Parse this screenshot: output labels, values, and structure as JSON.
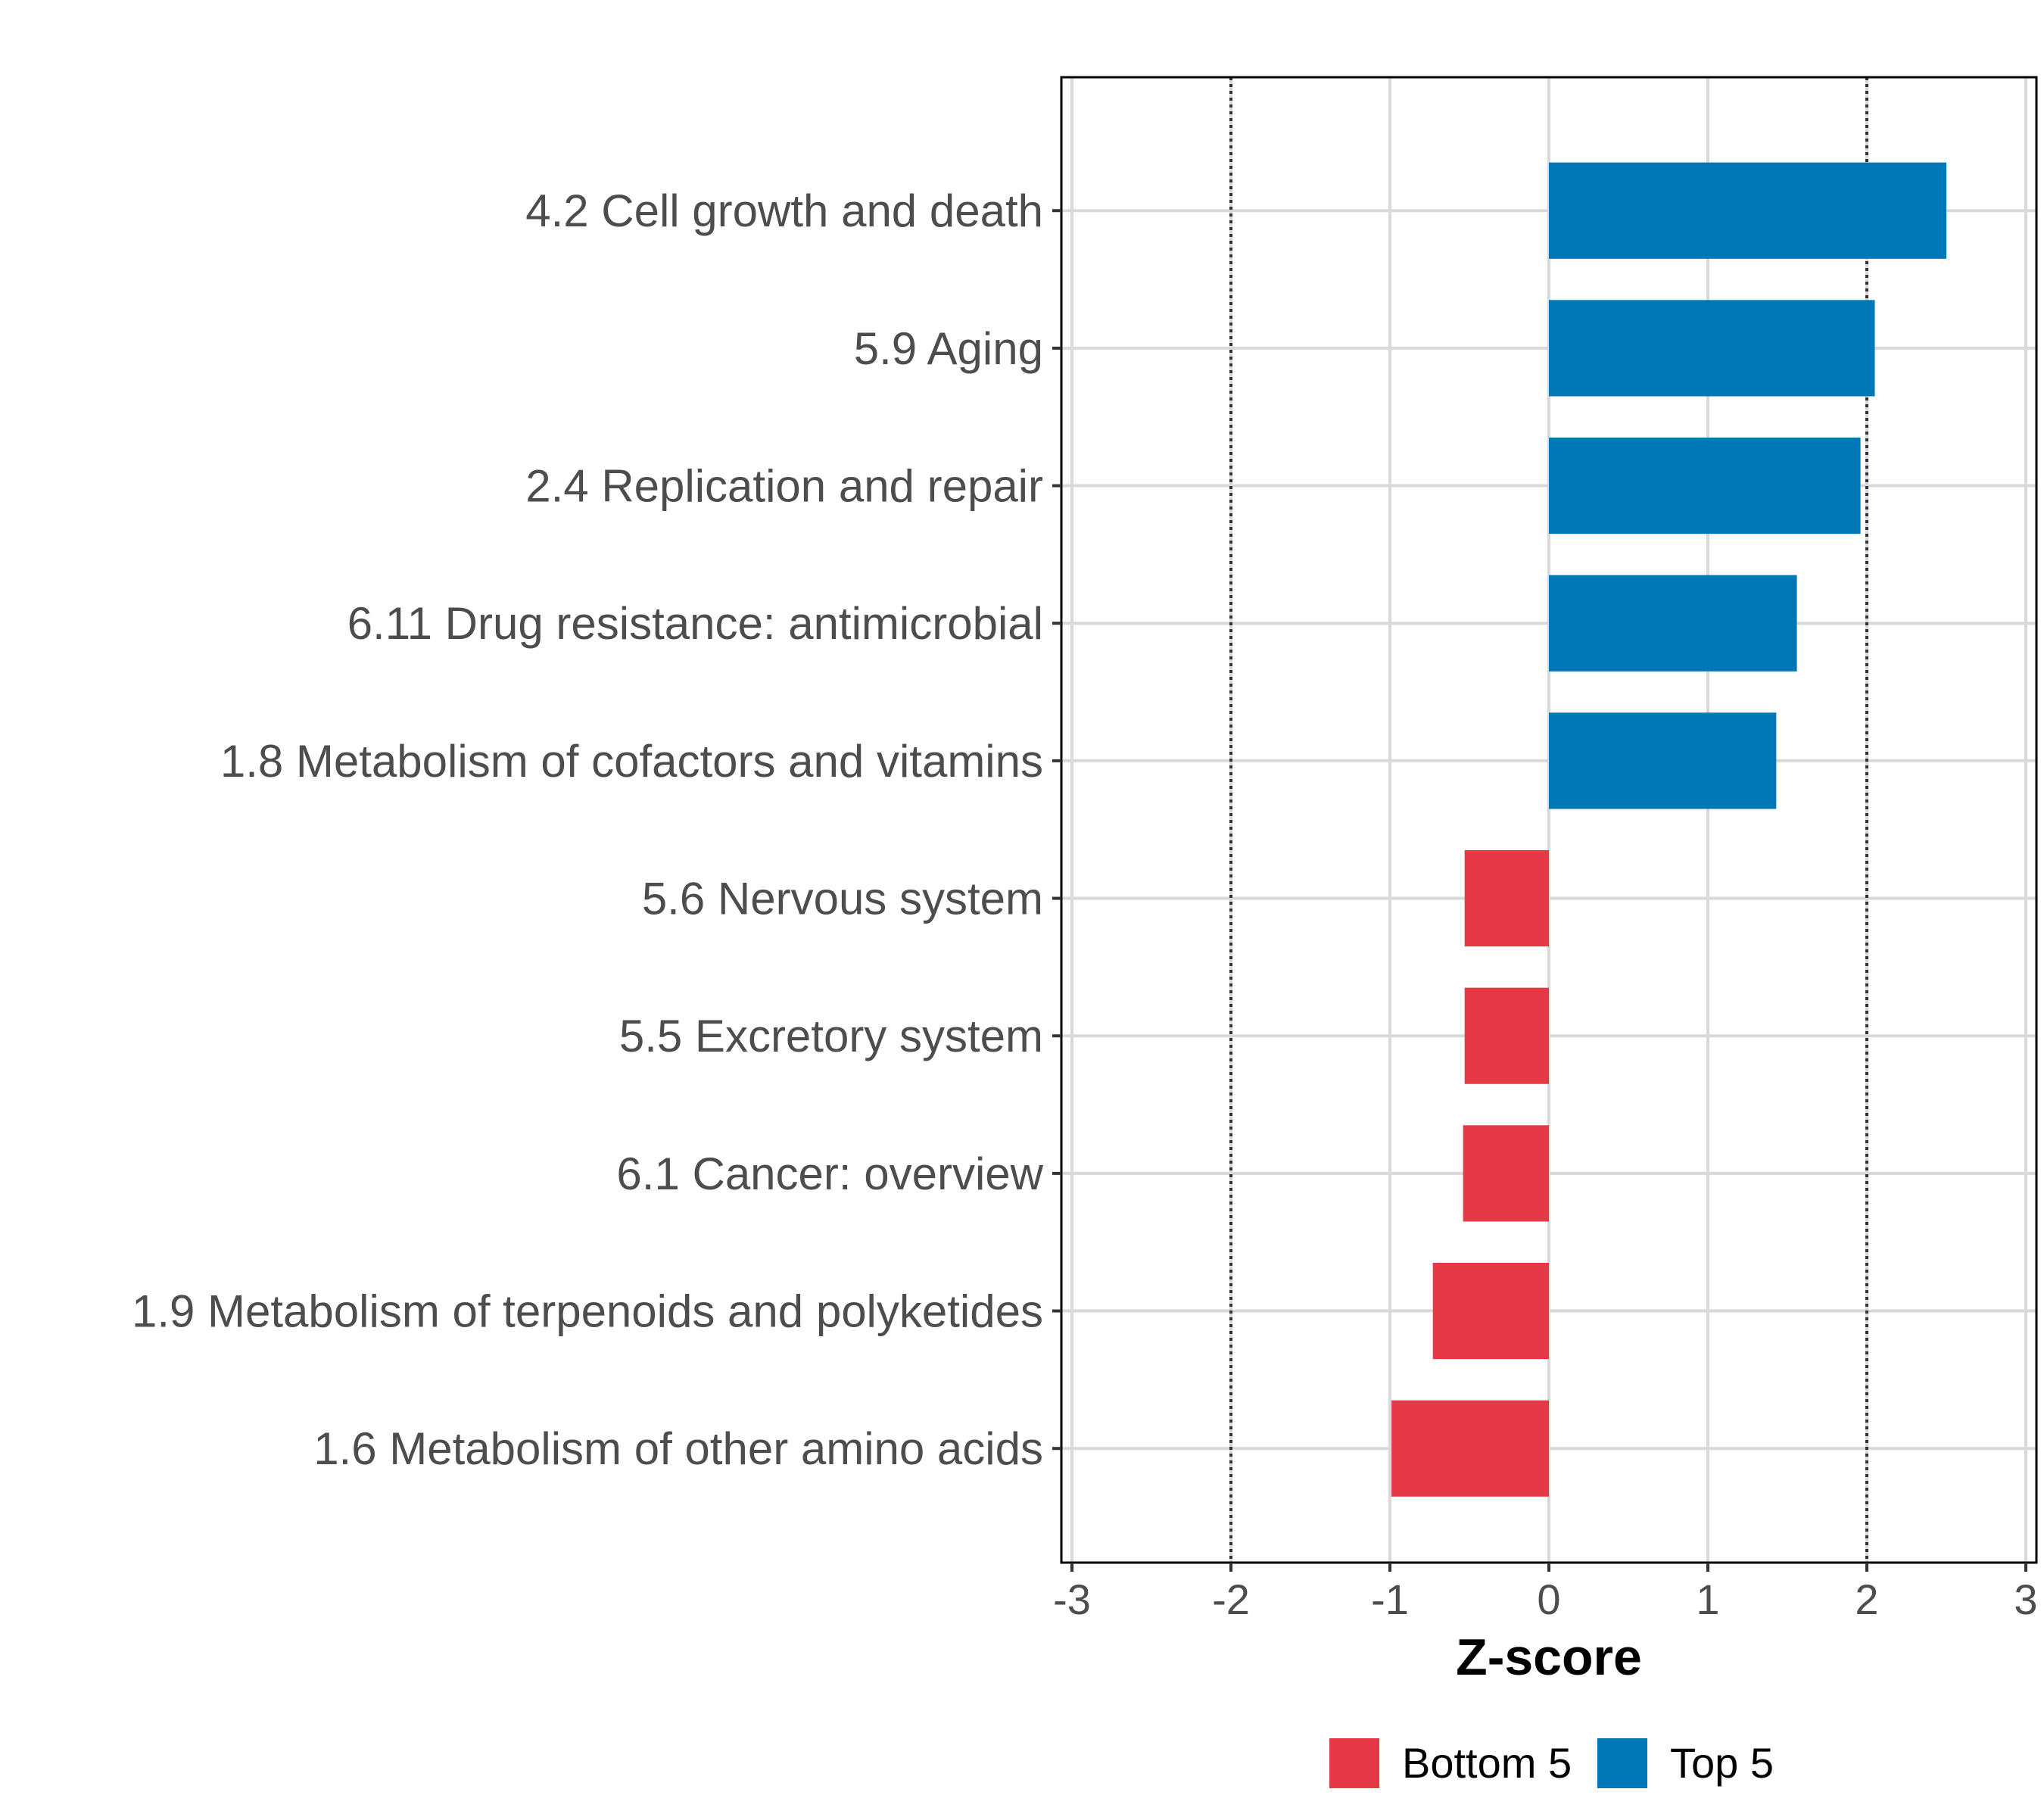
{
  "chart_data": {
    "type": "bar",
    "orientation": "horizontal",
    "title": "",
    "xlabel": "Z-score",
    "ylabel": "",
    "xlim": [
      -3,
      3
    ],
    "x_ticks": [
      "-3",
      "-2",
      "-1",
      "0",
      "1",
      "2",
      "3"
    ],
    "threshold_lines": [
      -2,
      2
    ],
    "categories": [
      "4.2 Cell growth and death",
      "5.9 Aging",
      "2.4 Replication and repair",
      "6.11 Drug resistance: antimicrobial",
      "1.8 Metabolism of cofactors and vitamins",
      "5.6 Nervous system",
      "5.5 Excretory system",
      "6.1 Cancer: overview",
      "1.9 Metabolism of terpenoids and polyketides",
      "1.6 Metabolism of other amino acids"
    ],
    "values": [
      2.5,
      2.05,
      1.96,
      1.56,
      1.43,
      -0.53,
      -0.53,
      -0.54,
      -0.73,
      -0.99
    ],
    "groups": [
      "Top 5",
      "Top 5",
      "Top 5",
      "Top 5",
      "Top 5",
      "Bottom 5",
      "Bottom 5",
      "Bottom 5",
      "Bottom 5",
      "Bottom 5"
    ],
    "legend": [
      {
        "label": "Bottom 5",
        "color": "#E63946"
      },
      {
        "label": "Top 5",
        "color": "#0077B6"
      }
    ],
    "legend_position": "bottom"
  }
}
